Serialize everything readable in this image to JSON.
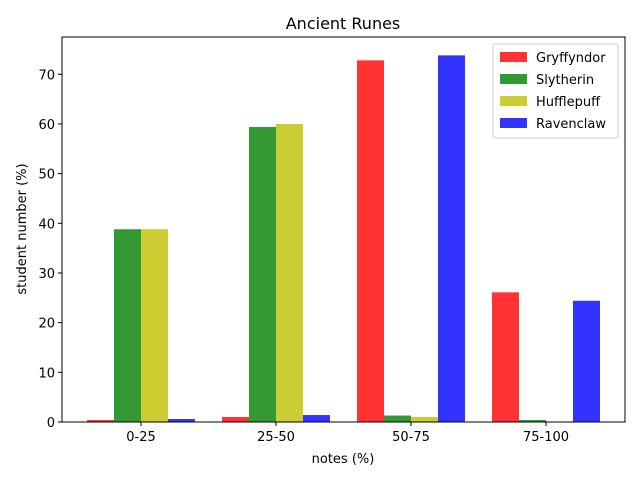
{
  "chart_data": {
    "type": "bar",
    "title": "Ancient Runes",
    "xlabel": "notes (%)",
    "ylabel": "student number (%)",
    "categories": [
      "0-25",
      "25-50",
      "50-75",
      "75-100"
    ],
    "ylim": [
      0,
      77.5
    ],
    "yticks": [
      0,
      10,
      20,
      30,
      40,
      50,
      60,
      70
    ],
    "grid": false,
    "legend_position": "top-right",
    "series": [
      {
        "name": "Gryffyndor",
        "color": "#ff3333",
        "values": [
          0.4,
          1.0,
          72.8,
          26.1
        ]
      },
      {
        "name": "Slytherin",
        "color": "#339933",
        "values": [
          38.8,
          59.4,
          1.3,
          0.4
        ]
      },
      {
        "name": "Hufflepuff",
        "color": "#cccc33",
        "values": [
          38.8,
          60.0,
          1.0,
          0.0
        ]
      },
      {
        "name": "Ravenclaw",
        "color": "#3333ff",
        "values": [
          0.6,
          1.4,
          73.8,
          24.4
        ]
      }
    ]
  }
}
